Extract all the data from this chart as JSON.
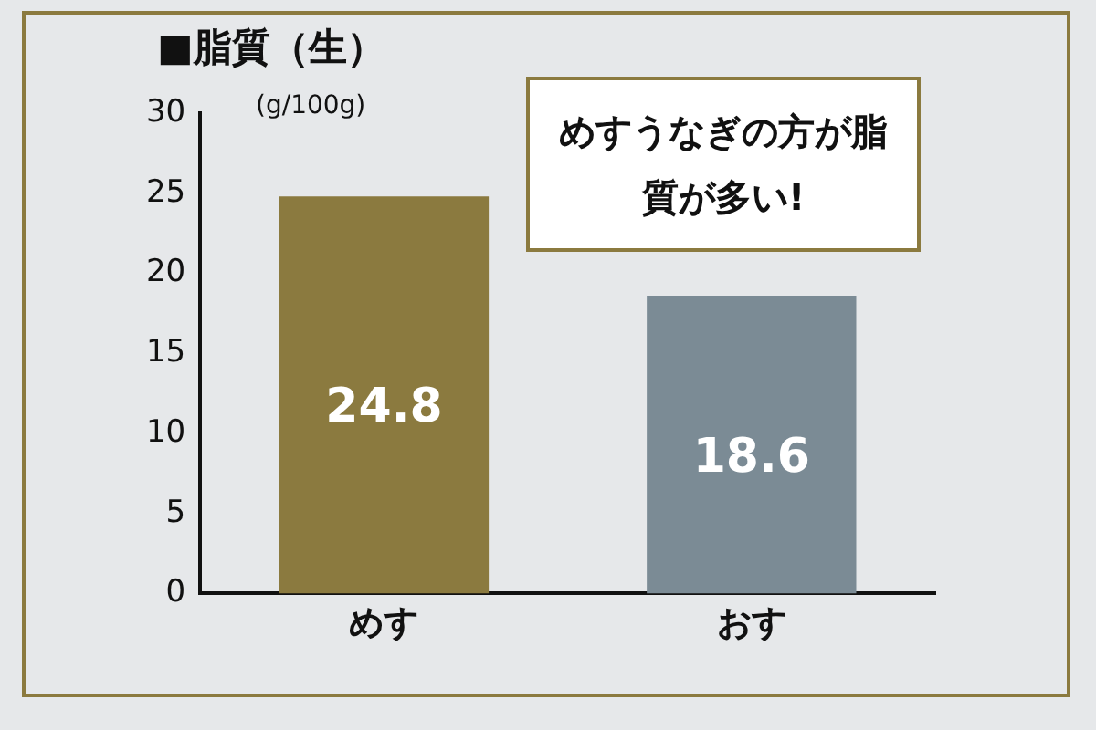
{
  "chart_data": {
    "type": "bar",
    "title": "■脂質（生）",
    "ylabel": "(g/100g)",
    "categories": [
      "めす",
      "おす"
    ],
    "values": [
      24.8,
      18.6
    ],
    "colors": [
      "#8b7a3f",
      "#7b8b95"
    ],
    "ylim": [
      0,
      30
    ],
    "yticks": [
      0,
      5,
      10,
      15,
      20,
      25,
      30
    ],
    "grid": false,
    "legend": false,
    "data_labels": true,
    "annotations": [
      "めすうなぎの方が脂質が多い!"
    ]
  }
}
